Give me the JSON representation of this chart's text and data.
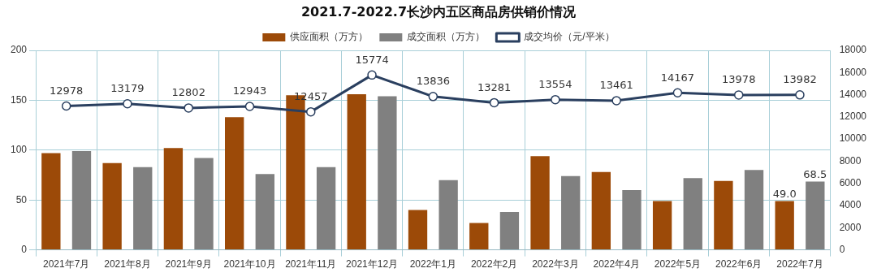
{
  "chart_data": {
    "type": "bar",
    "title": "2021.7-2022.7长沙内五区商品房供销价情况",
    "categories": [
      "2021年7月",
      "2021年8月",
      "2021年9月",
      "2021年10月",
      "2021年11月",
      "2021年12月",
      "2022年1月",
      "2022年2月",
      "2022年3月",
      "2022年4月",
      "2022年5月",
      "2022年6月",
      "2022年7月"
    ],
    "series": [
      {
        "name": "供应面积（万方）",
        "color": "#9c4a08",
        "values": [
          97,
          87,
          102,
          133,
          155,
          156,
          40,
          27,
          94,
          78,
          49,
          69,
          49.0
        ],
        "value_labels": [
          null,
          null,
          null,
          null,
          null,
          null,
          null,
          null,
          null,
          null,
          null,
          null,
          "49.0"
        ]
      },
      {
        "name": "成交面积（万方）",
        "color": "#808080",
        "values": [
          99,
          83,
          92,
          76,
          83,
          154,
          70,
          38,
          74,
          60,
          72,
          80,
          68.5
        ],
        "value_labels": [
          null,
          null,
          null,
          null,
          null,
          null,
          null,
          null,
          null,
          null,
          null,
          null,
          "68.5"
        ]
      },
      {
        "name": "成交均价（元/平米）",
        "type": "line",
        "axis": "y2",
        "color": "#2a3f5f",
        "values": [
          12978,
          13179,
          12802,
          12943,
          12457,
          15774,
          13836,
          13281,
          13554,
          13461,
          14167,
          13978,
          13982
        ],
        "value_labels": [
          "12978",
          "13179",
          "12802",
          "12943",
          "12457",
          "15774",
          "13836",
          "13281",
          "13554",
          "13461",
          "14167",
          "13978",
          "13982"
        ]
      }
    ],
    "ylim": [
      0,
      200
    ],
    "yticks": [
      0,
      50,
      100,
      150,
      200
    ],
    "y2lim": [
      0,
      18000
    ],
    "y2ticks": [
      0,
      2000,
      4000,
      6000,
      8000,
      10000,
      12000,
      14000,
      16000,
      18000
    ],
    "grid": true,
    "legend": "top",
    "marker": "circle",
    "line_style": "solid"
  }
}
